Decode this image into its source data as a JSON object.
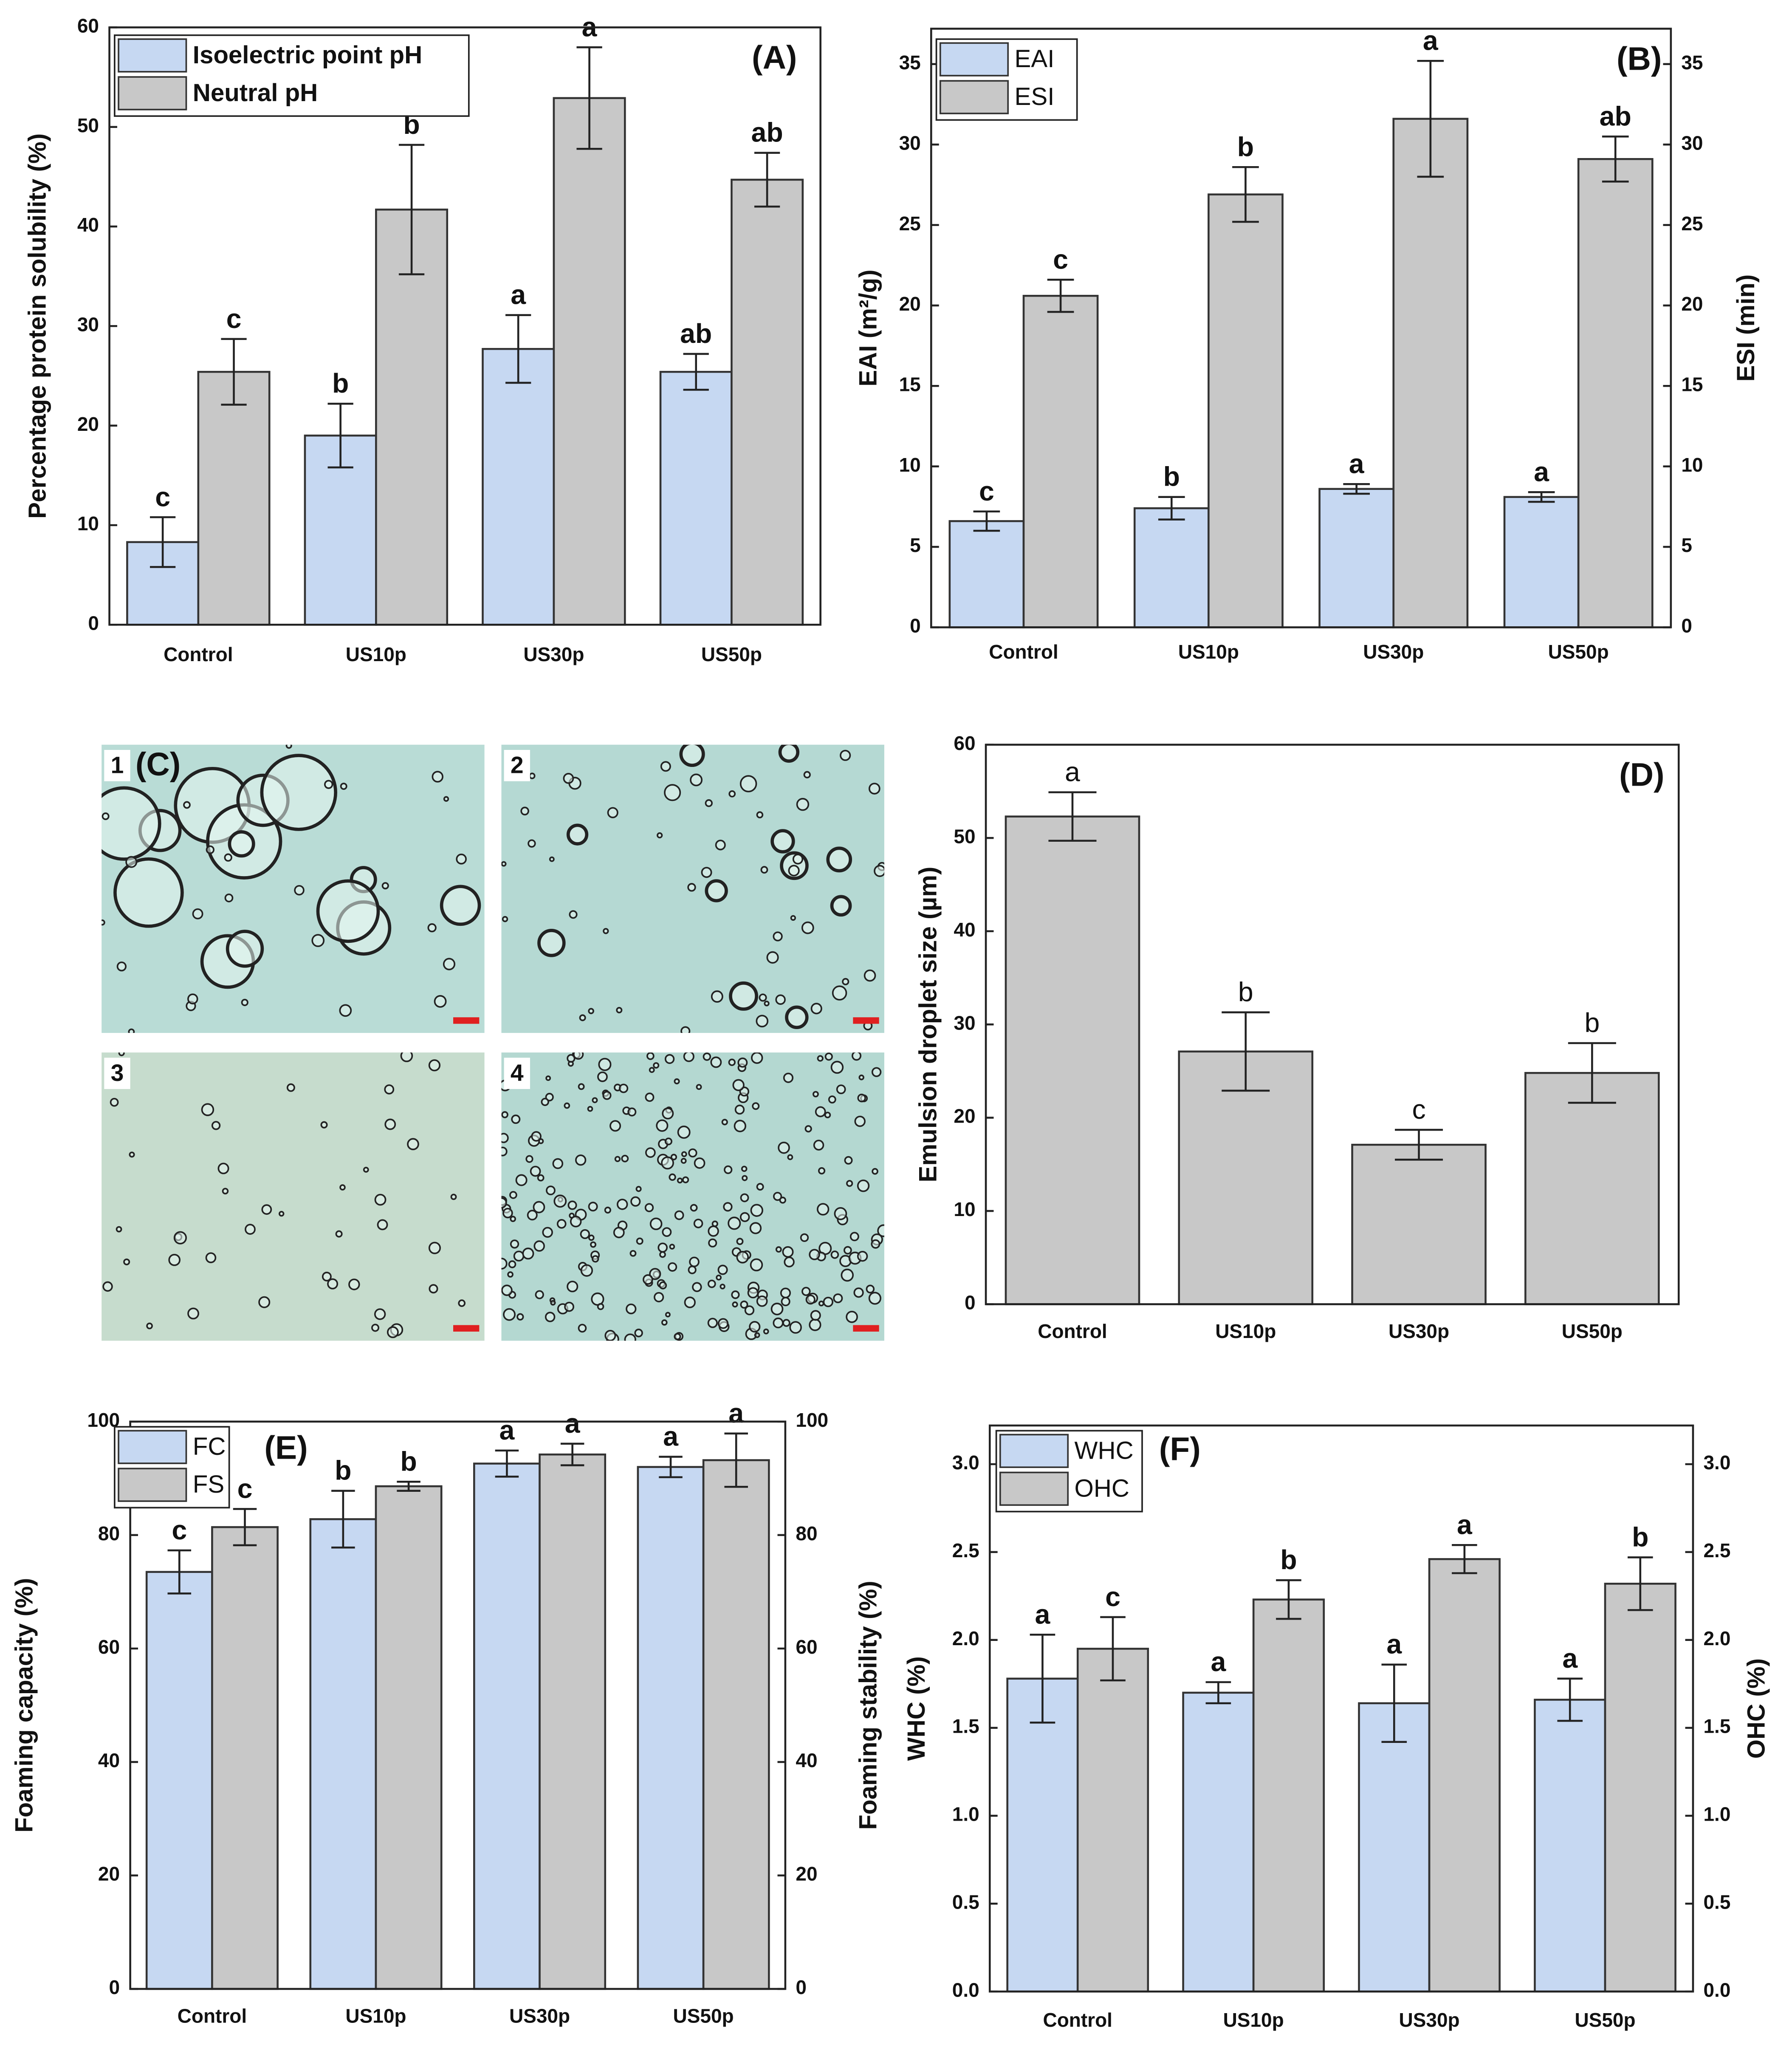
{
  "chart_data": [
    {
      "type": "bar",
      "panel_label": "(A)",
      "ylabel": "Percentage protein solubility (%)",
      "categories": [
        "Control",
        "US10p",
        "US30p",
        "US50p"
      ],
      "series": [
        {
          "name": "Isoelectric point pH",
          "color": "#c6d8f2",
          "values": [
            8.3,
            19,
            27.7,
            25.4
          ],
          "errors": [
            2.5,
            3.2,
            3.4,
            1.8
          ],
          "letters": [
            "c",
            "b",
            "a",
            "ab"
          ]
        },
        {
          "name": "Neutral pH",
          "color": "#c8c8c8",
          "values": [
            25.4,
            41.7,
            52.9,
            44.7
          ],
          "errors": [
            3.3,
            6.5,
            5.1,
            2.7
          ],
          "letters": [
            "c",
            "b",
            "a",
            "ab"
          ]
        }
      ],
      "ylim": [
        0,
        60
      ],
      "yticks": [
        0,
        10,
        20,
        30,
        40,
        50,
        60
      ],
      "legend": "upper left"
    },
    {
      "type": "bar",
      "panel_label": "(B)",
      "ylabel": "EAI (m²/g)",
      "y2label": "ESI (min)",
      "categories": [
        "Control",
        "US10p",
        "US30p",
        "US50p"
      ],
      "series": [
        {
          "name": "EAI",
          "color": "#c6d8f2",
          "values": [
            6.6,
            7.4,
            8.6,
            8.1
          ],
          "errors": [
            0.6,
            0.7,
            0.3,
            0.3
          ],
          "letters": [
            "c",
            "b",
            "a",
            "a"
          ]
        },
        {
          "name": "ESI",
          "color": "#c8c8c8",
          "axis": "y2",
          "values": [
            20.6,
            26.9,
            31.6,
            29.1
          ],
          "errors": [
            1.0,
            1.7,
            3.6,
            1.4
          ],
          "letters": [
            "c",
            "b",
            "a",
            "ab"
          ]
        }
      ],
      "ylim": [
        0,
        37.2
      ],
      "yticks": [
        0,
        5,
        10,
        15,
        20,
        25,
        30,
        35
      ],
      "y2lim": [
        0,
        37.2
      ],
      "y2ticks": [
        0,
        5,
        10,
        15,
        20,
        25,
        30,
        35
      ],
      "legend": "upper left"
    },
    {
      "type": "bar",
      "panel_label": "(D)",
      "ylabel": "Emulsion droplet size (µm)",
      "categories": [
        "Control",
        "US10p",
        "US30p",
        "US50p"
      ],
      "series": [
        {
          "color": "#c8c8c8",
          "values": [
            52.3,
            27.1,
            17.1,
            24.8
          ],
          "errors": [
            2.6,
            4.2,
            1.6,
            3.2
          ],
          "letters": [
            "a",
            "b",
            "c",
            "b"
          ]
        }
      ],
      "ylim": [
        0,
        60
      ],
      "yticks": [
        0,
        10,
        20,
        30,
        40,
        50,
        60
      ]
    },
    {
      "type": "bar",
      "panel_label": "(E)",
      "ylabel": "Foaming capacity (%)",
      "y2label": "Foaming stability (%)",
      "categories": [
        "Control",
        "US10p",
        "US30p",
        "US50p"
      ],
      "series": [
        {
          "name": "FC",
          "color": "#c6d8f2",
          "values": [
            73.5,
            82.8,
            92.6,
            92.0
          ],
          "errors": [
            3.8,
            5.0,
            2.3,
            1.8
          ],
          "letters": [
            "c",
            "b",
            "a",
            "a"
          ]
        },
        {
          "name": "FS",
          "color": "#c8c8c8",
          "axis": "y2",
          "values": [
            81.4,
            88.6,
            94.2,
            93.2
          ],
          "errors": [
            3.2,
            0.8,
            1.9,
            4.7
          ],
          "letters": [
            "c",
            "b",
            "a",
            "a"
          ]
        }
      ],
      "ylim": [
        0,
        100
      ],
      "yticks": [
        0,
        20,
        40,
        60,
        80,
        100
      ],
      "y2lim": [
        0,
        100
      ],
      "y2ticks": [
        0,
        20,
        40,
        60,
        80,
        100
      ],
      "legend": "upper left"
    },
    {
      "type": "bar",
      "panel_label": "(F)",
      "ylabel": "WHC (%)",
      "y2label": "OHC (%)",
      "categories": [
        "Control",
        "US10p",
        "US30p",
        "US50p"
      ],
      "series": [
        {
          "name": "WHC",
          "color": "#c6d8f2",
          "values": [
            1.78,
            1.7,
            1.64,
            1.66
          ],
          "errors": [
            0.25,
            0.06,
            0.22,
            0.12
          ],
          "letters": [
            "a",
            "a",
            "a",
            "a"
          ]
        },
        {
          "name": "OHC",
          "color": "#c8c8c8",
          "axis": "y2",
          "values": [
            1.95,
            2.23,
            2.46,
            2.32
          ],
          "errors": [
            0.18,
            0.11,
            0.08,
            0.15
          ],
          "letters": [
            "c",
            "b",
            "a",
            "b"
          ]
        }
      ],
      "ylim": [
        0,
        3.22
      ],
      "yticks": [
        {
          "value": 0,
          "label": "0.0"
        },
        0.5,
        {
          "value": 1,
          "label": "1.0"
        },
        1.5,
        {
          "value": 2,
          "label": "2.0"
        },
        2.5,
        {
          "value": 3,
          "label": "3.0"
        }
      ],
      "y2lim": [
        0,
        3.22
      ],
      "y2ticks": [
        {
          "value": 0,
          "label": "0.0"
        },
        0.5,
        {
          "value": 1,
          "label": "1.0"
        },
        1.5,
        {
          "value": 2,
          "label": "2.0"
        },
        2.5,
        {
          "value": 3,
          "label": "3.0"
        }
      ],
      "legend": "upper left"
    }
  ],
  "micrographs": {
    "panel_label": "(C)",
    "panels": [
      "1",
      "2",
      "3",
      "4"
    ]
  }
}
